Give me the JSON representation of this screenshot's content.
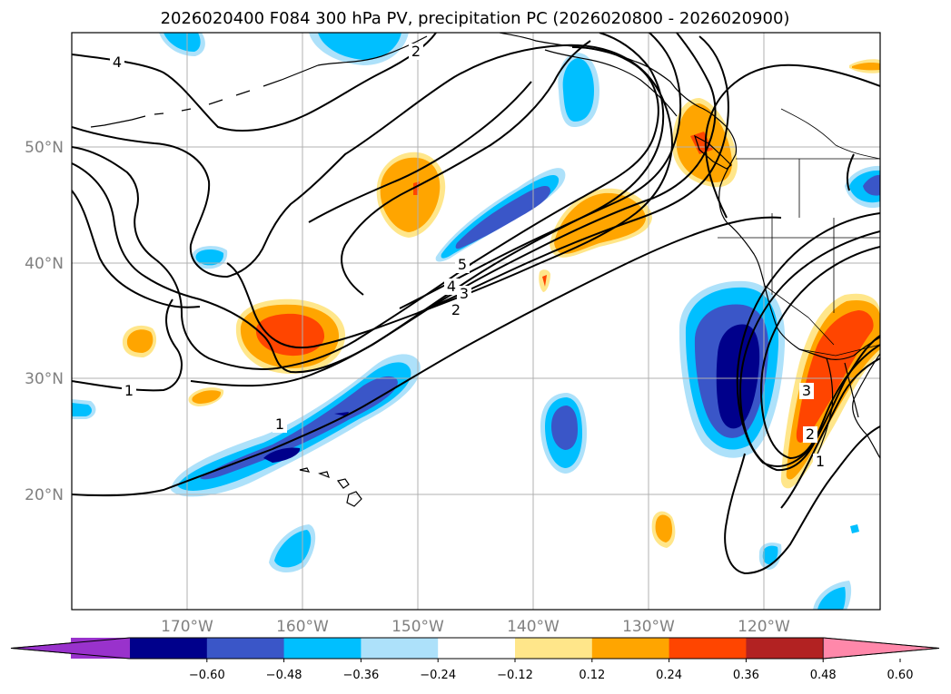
{
  "title": "2026020400 F084 300 hPa PV, precipitation PC (2026020800 - 2026020900)",
  "map": {
    "lon_range": [
      -180,
      -110
    ],
    "lat_range": [
      10,
      60
    ],
    "lat_ticks": [
      {
        "value": 20,
        "label": "20°N"
      },
      {
        "value": 30,
        "label": "30°N"
      },
      {
        "value": 40,
        "label": "40°N"
      },
      {
        "value": 50,
        "label": "50°N"
      }
    ],
    "lon_ticks": [
      {
        "value": -170,
        "label": "170°W"
      },
      {
        "value": -160,
        "label": "160°W"
      },
      {
        "value": -150,
        "label": "150°W"
      },
      {
        "value": -140,
        "label": "140°W"
      },
      {
        "value": -130,
        "label": "130°W"
      },
      {
        "value": -120,
        "label": "120°W"
      }
    ],
    "pv_contour_labels": [
      "4",
      "2",
      "5",
      "4",
      "3",
      "2",
      "1",
      "1",
      "3",
      "2",
      "1"
    ]
  },
  "colorbar": {
    "ticks": [
      "−0.60",
      "−0.48",
      "−0.36",
      "−0.24",
      "−0.12",
      "0.12",
      "0.24",
      "0.36",
      "0.48",
      "0.60"
    ],
    "under_color": "#9932CC",
    "over_color": "#FF88AA",
    "colors": [
      "#8B2BD0",
      "#00008B",
      "#3355CC",
      "#00BFFF",
      "#B0E0FF",
      "#FFFFFF",
      "#FFE88A",
      "#FFA500",
      "#FF4500",
      "#B22222",
      "#FF88AA"
    ],
    "bins": [
      "#9932CC",
      "#00008B",
      "#3A56C8",
      "#00BFFF",
      "#ADE1FA",
      "#FFFFFF",
      "#FFE68A",
      "#FFA500",
      "#FF4500",
      "#B22222",
      "#FF88AA"
    ]
  }
}
